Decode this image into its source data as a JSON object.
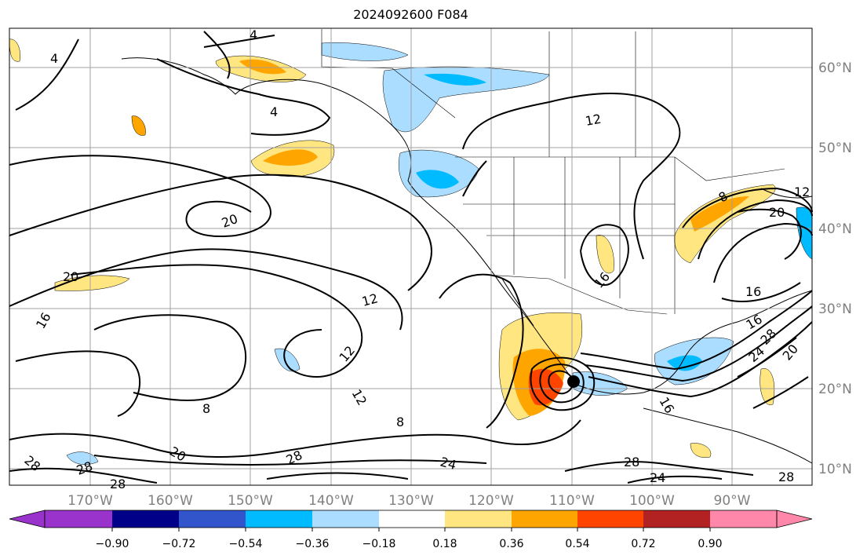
{
  "title": "2024092600 F084",
  "lon_labels": [
    "170°W",
    "160°W",
    "150°W",
    "140°W",
    "130°W",
    "120°W",
    "110°W",
    "100°W",
    "90°W"
  ],
  "lat_labels": [
    "60°N",
    "50°N",
    "40°N",
    "30°N",
    "20°N",
    "10°N"
  ],
  "colorbar": {
    "ticks": [
      "−0.90",
      "−0.72",
      "−0.54",
      "−0.36",
      "−0.18",
      "0.18",
      "0.36",
      "0.54",
      "0.72",
      "0.90"
    ],
    "colors": [
      "#9933cc",
      "#000088",
      "#3355cc",
      "#00bbff",
      "#aaddff",
      "#ffffff",
      "#ffe680",
      "#ffa500",
      "#ff4400",
      "#b22222",
      "#ff88aa"
    ]
  },
  "contour_labels": [
    "4",
    "4",
    "4",
    "12",
    "20",
    "20",
    "12",
    "12",
    "12",
    "16",
    "16",
    "8",
    "28",
    "28",
    "28",
    "20",
    "28",
    "24",
    "28",
    "24",
    "16",
    "8",
    "20",
    "12",
    "16",
    "16",
    "24",
    "28",
    "20",
    "28",
    "8"
  ],
  "colors": {
    "positive": "#ffa500",
    "negative": "#00bbff",
    "border": "#000000",
    "grid": "#a0a0a0"
  }
}
